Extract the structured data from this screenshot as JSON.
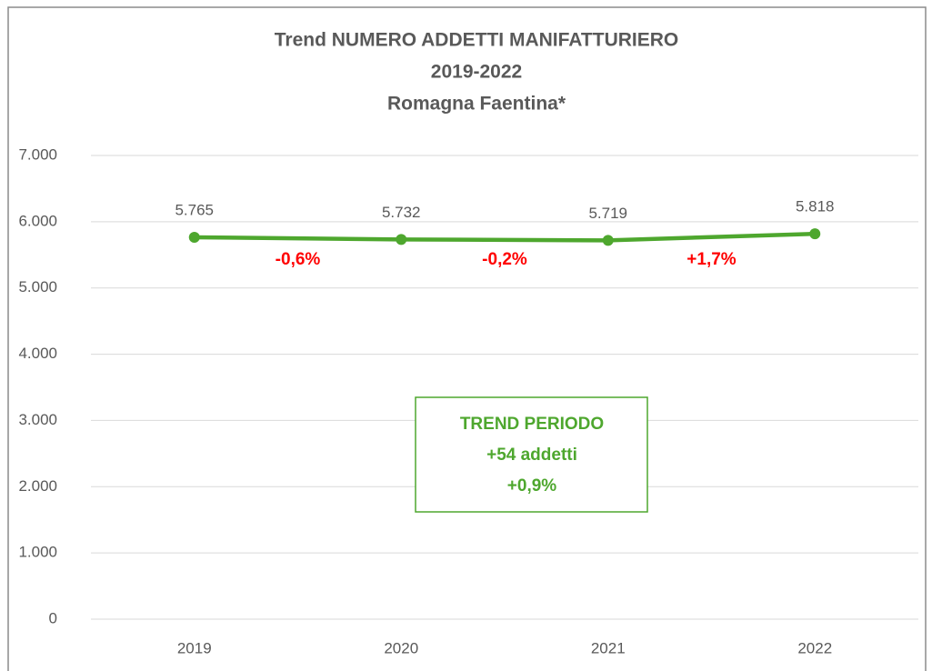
{
  "chart_data": {
    "type": "line",
    "title": [
      "Trend NUMERO ADDETTI MANIFATTURIERO",
      "2019-2022",
      "Romagna Faentina*"
    ],
    "categories": [
      "2019",
      "2020",
      "2021",
      "2022"
    ],
    "values": [
      5765,
      5732,
      5719,
      5818
    ],
    "value_labels": [
      "5.765",
      "5.732",
      "5.719",
      "5.818"
    ],
    "color": "#4ea72e",
    "ylim": [
      0,
      7000
    ],
    "yticks": [
      0,
      {
        "value": 1000,
        "label": "1.000"
      },
      {
        "value": 2000,
        "label": "2.000"
      },
      {
        "value": 3000,
        "label": "3.000"
      },
      {
        "value": 4000,
        "label": "4.000"
      },
      {
        "value": 5000,
        "label": "5.000"
      },
      {
        "value": 6000,
        "label": "6.000"
      },
      {
        "value": 7000,
        "label": "7.000"
      }
    ],
    "grid": true,
    "change_labels": [
      "-0,6%",
      "-0,2%",
      "+1,7%"
    ],
    "change_color": "#ff0000",
    "trend_box": [
      "TREND PERIODO",
      "+54 addetti",
      "+0,9%"
    ]
  }
}
